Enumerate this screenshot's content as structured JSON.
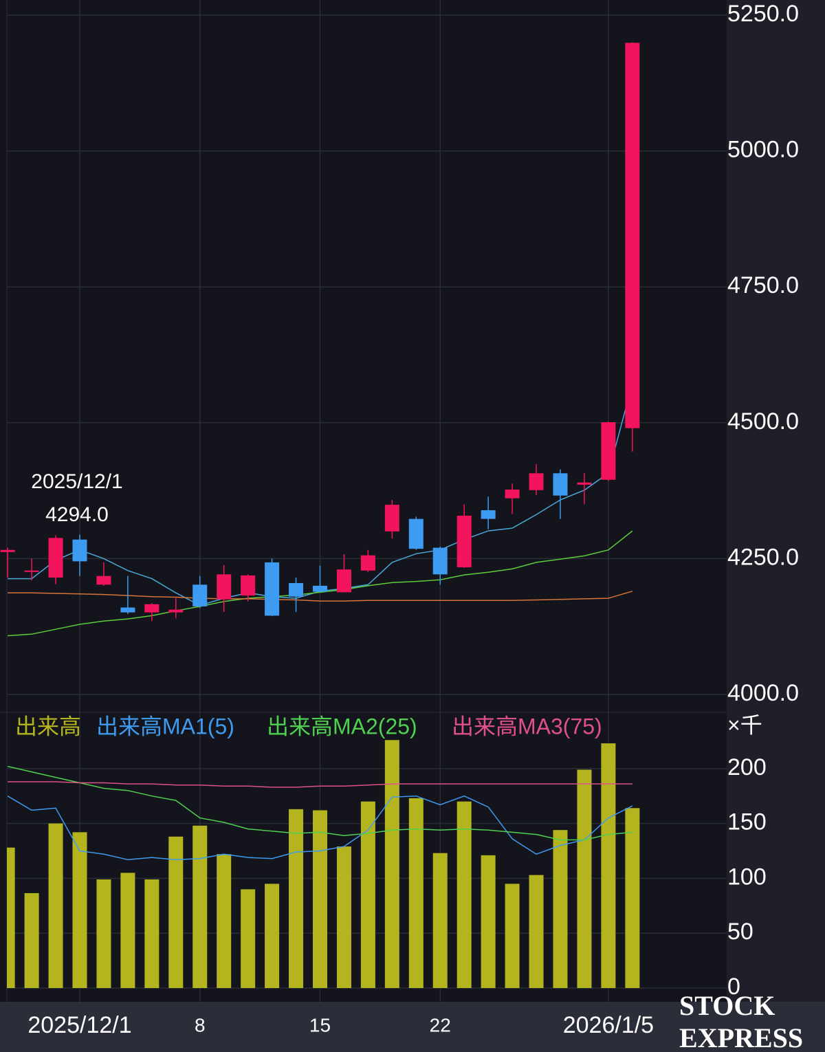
{
  "chart_data": [
    {
      "type": "candlestick",
      "categories": [
        null,
        null,
        null,
        "2025/12/1",
        null,
        null,
        null,
        null,
        "8",
        null,
        null,
        null,
        null,
        "15",
        null,
        null,
        null,
        null,
        "22",
        null,
        null,
        null,
        null,
        null,
        null,
        "2026/1/5",
        null
      ],
      "open": [
        4262,
        4226,
        4215,
        4285,
        4202,
        4160,
        4151,
        4151,
        4202,
        4175,
        4182,
        4243,
        4205,
        4200,
        4188,
        4228,
        4300,
        4323,
        4270,
        4234,
        4339,
        4361,
        4376,
        4407,
        4386,
        4395,
        4490
      ],
      "high": [
        4270,
        4250,
        4293,
        4294,
        4243,
        4218,
        4168,
        4177,
        4218,
        4238,
        4221,
        4250,
        4215,
        4237,
        4258,
        4266,
        4358,
        4327,
        4272,
        4350,
        4364,
        4388,
        4424,
        4414,
        4407,
        4502,
        5200
      ],
      "low": [
        4215,
        4210,
        4203,
        4218,
        4200,
        4148,
        4135,
        4140,
        4159,
        4152,
        4171,
        4144,
        4152,
        4188,
        4188,
        4225,
        4287,
        4266,
        4202,
        4233,
        4304,
        4332,
        4367,
        4323,
        4350,
        4393,
        4447
      ],
      "close": [
        4266,
        4228,
        4288,
        4245,
        4218,
        4151,
        4166,
        4156,
        4162,
        4221,
        4219,
        4145,
        4180,
        4189,
        4230,
        4256,
        4349,
        4268,
        4221,
        4329,
        4323,
        4377,
        4407,
        4366,
        4390,
        4501,
        5199
      ],
      "up_color": "#f2145c",
      "down_color": "#3d9bf2",
      "ma_lines": [
        {
          "color": "#4aa8d8",
          "values": [
            4213,
            4213,
            4247,
            4266,
            4250,
            4228,
            4213,
            4187,
            4164,
            4177,
            4187,
            4180,
            4177,
            4190,
            4195,
            4202,
            4243,
            4259,
            4266,
            4285,
            4301,
            4306,
            4331,
            4358,
            4376,
            4407,
            4572
          ]
        },
        {
          "color": "#5ccc3c",
          "values": [
            4108,
            4111,
            4120,
            4129,
            4135,
            4139,
            4145,
            4154,
            4162,
            4171,
            4177,
            4180,
            4183,
            4188,
            4193,
            4200,
            4206,
            4208,
            4211,
            4220,
            4225,
            4231,
            4243,
            4249,
            4255,
            4266,
            4301
          ]
        },
        {
          "color": "#d8743a",
          "values": [
            4187,
            4187,
            4186,
            4185,
            4184,
            4182,
            4180,
            4179,
            4177,
            4176,
            4176,
            4175,
            4174,
            4172,
            4172,
            4173,
            4173,
            4173,
            4173,
            4173,
            4173,
            4173,
            4174,
            4175,
            4176,
            4177,
            4190
          ]
        }
      ],
      "ylim": [
        4000,
        5250
      ],
      "yticks": [
        {
          "value": 4000,
          "label": "4000.0"
        },
        {
          "value": 4250,
          "label": "4250.0"
        },
        {
          "value": 4500,
          "label": "4500.0"
        },
        {
          "value": 4750,
          "label": "4750.0"
        },
        {
          "value": 5000,
          "label": "5000.0"
        },
        {
          "value": 5250,
          "label": "5250.0"
        }
      ],
      "grid": true,
      "annotation": [
        "2025/12/1",
        "4294.0"
      ]
    },
    {
      "type": "bar",
      "unit_label": "×千",
      "series": [
        {
          "name": "出来高",
          "color": "#b4b41e",
          "values": [
            128,
            86.5,
            150,
            142,
            99,
            105,
            99,
            138,
            148,
            122,
            90,
            95,
            163,
            162,
            129,
            170,
            226,
            173,
            123,
            170,
            121,
            95,
            103,
            144,
            199,
            223,
            164
          ]
        },
        {
          "name": "出来高MA1(5)",
          "color": "#3d9bf2",
          "values": [
            175,
            162,
            164,
            125,
            122,
            117,
            119,
            117,
            118,
            122,
            119,
            118,
            124,
            125,
            129,
            144,
            174,
            175,
            167,
            175,
            165,
            136,
            122,
            130,
            135,
            155,
            166
          ]
        },
        {
          "name": "出来高MA2(25)",
          "color": "#4fd14f",
          "values": [
            202,
            197,
            192,
            187,
            182,
            180,
            175,
            171,
            155,
            151,
            145,
            143,
            141,
            142,
            139,
            141,
            144,
            145,
            144,
            145,
            144,
            142,
            140,
            135,
            135,
            140,
            142
          ]
        },
        {
          "name": "出来高MA3(75)",
          "color": "#e0508a",
          "values": [
            188,
            188,
            188,
            187,
            187,
            186,
            186,
            185,
            185,
            184,
            184,
            183,
            183,
            184,
            184,
            185,
            186,
            186,
            186,
            186,
            186,
            186,
            186,
            186,
            186,
            186,
            186
          ]
        }
      ],
      "ylim": [
        0,
        250
      ],
      "yticks": [
        0,
        50,
        100,
        150,
        200
      ],
      "grid": true
    }
  ],
  "watermark": [
    "STOCK",
    "EXPRESS"
  ]
}
